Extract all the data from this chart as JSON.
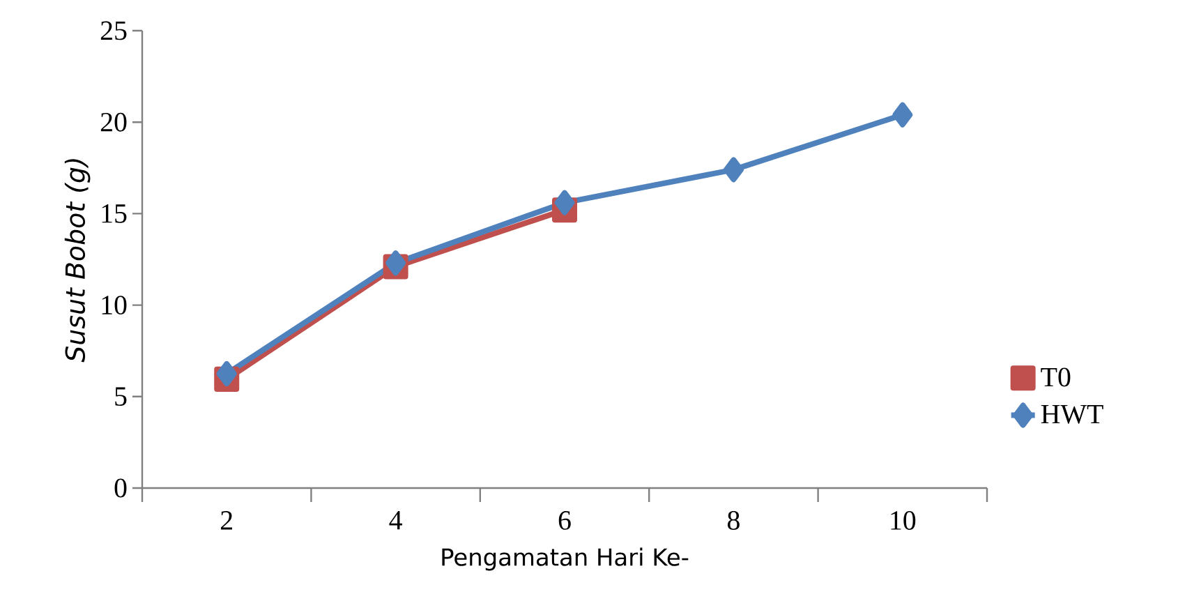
{
  "chart_data": {
    "type": "line",
    "xlabel": "Pengamatan Hari Ke-",
    "ylabel": "Susut Bobot (g)",
    "categories": [
      "2",
      "4",
      "6",
      "8",
      "10"
    ],
    "series": [
      {
        "name": "T0",
        "color": "#c0504d",
        "marker": "square",
        "values": [
          5.95,
          12.1,
          15.2,
          null,
          null
        ]
      },
      {
        "name": "HWT",
        "color": "#4f81bd",
        "marker": "diamond",
        "values": [
          6.25,
          12.3,
          15.6,
          17.4,
          20.4
        ]
      }
    ],
    "ylim": [
      0,
      25
    ],
    "yticks": [
      0,
      5,
      10,
      15,
      20,
      25
    ],
    "grid": false,
    "legend": "right",
    "line_style": "solid"
  }
}
